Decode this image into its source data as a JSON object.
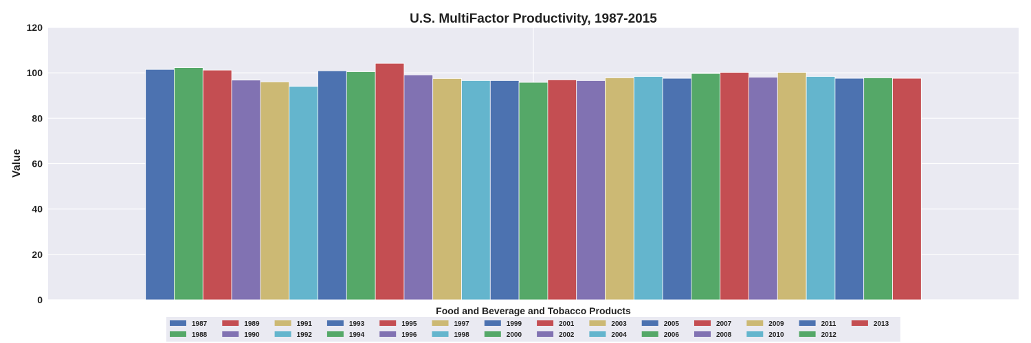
{
  "chart_data": {
    "type": "bar",
    "title": "U.S. MultiFactor Productivity, 1987-2015",
    "xlabel": "Food and Beverage and Tobacco Products",
    "ylabel": "Value",
    "ylim": [
      0,
      120
    ],
    "yticks": [
      "0",
      "20",
      "40",
      "60",
      "80",
      "100",
      "120"
    ],
    "categories": [
      "Food and Beverage and Tobacco Products"
    ],
    "grid": true,
    "legend_position": "bottom-center",
    "palette": [
      "#4c72b0",
      "#55a868",
      "#c44e52",
      "#8172b2",
      "#ccb974",
      "#64b5cd"
    ],
    "series": [
      {
        "name": "1987",
        "values": [
          101.5
        ]
      },
      {
        "name": "1988",
        "values": [
          102.3
        ]
      },
      {
        "name": "1989",
        "values": [
          101.2
        ]
      },
      {
        "name": "1990",
        "values": [
          96.8
        ]
      },
      {
        "name": "1991",
        "values": [
          96.0
        ]
      },
      {
        "name": "1992",
        "values": [
          94.0
        ]
      },
      {
        "name": "1993",
        "values": [
          100.9
        ]
      },
      {
        "name": "1994",
        "values": [
          100.5
        ]
      },
      {
        "name": "1995",
        "values": [
          104.2
        ]
      },
      {
        "name": "1996",
        "values": [
          99.1
        ]
      },
      {
        "name": "1997",
        "values": [
          97.5
        ]
      },
      {
        "name": "1998",
        "values": [
          96.6
        ]
      },
      {
        "name": "1999",
        "values": [
          96.6
        ]
      },
      {
        "name": "2000",
        "values": [
          95.8
        ]
      },
      {
        "name": "2001",
        "values": [
          96.9
        ]
      },
      {
        "name": "2002",
        "values": [
          96.6
        ]
      },
      {
        "name": "2003",
        "values": [
          97.8
        ]
      },
      {
        "name": "2004",
        "values": [
          98.4
        ]
      },
      {
        "name": "2005",
        "values": [
          97.6
        ]
      },
      {
        "name": "2006",
        "values": [
          99.7
        ]
      },
      {
        "name": "2007",
        "values": [
          100.2
        ]
      },
      {
        "name": "2008",
        "values": [
          98.1
        ]
      },
      {
        "name": "2009",
        "values": [
          100.2
        ]
      },
      {
        "name": "2010",
        "values": [
          98.4
        ]
      },
      {
        "name": "2011",
        "values": [
          97.6
        ]
      },
      {
        "name": "2012",
        "values": [
          97.8
        ]
      },
      {
        "name": "2013",
        "values": [
          97.6
        ]
      }
    ]
  }
}
